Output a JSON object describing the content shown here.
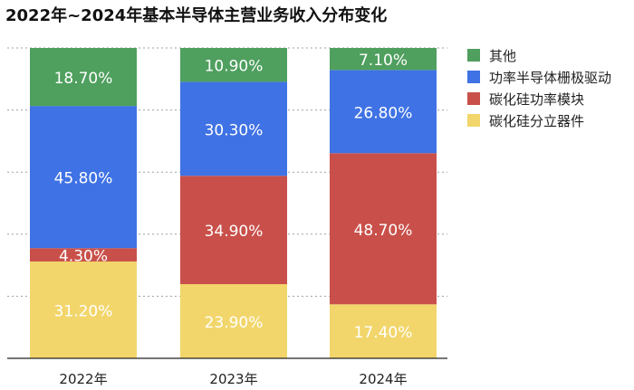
{
  "chart_data": {
    "type": "bar",
    "stacked": true,
    "title": "2022年~2024年基本半导体主营业务收入分布变化",
    "categories": [
      "2022年",
      "2023年",
      "2024年"
    ],
    "ylim": [
      0,
      100
    ],
    "grid": true,
    "legend_position": "right",
    "series": [
      {
        "name": "碳化硅分立器件",
        "color": "#F2D66B",
        "values": [
          31.2,
          23.9,
          17.4
        ],
        "labels": [
          "31.20%",
          "23.90%",
          "17.40%"
        ]
      },
      {
        "name": "碳化硅功率模块",
        "color": "#C9504A",
        "values": [
          4.3,
          34.9,
          48.7
        ],
        "labels": [
          "4.30%",
          "34.90%",
          "48.70%"
        ]
      },
      {
        "name": "功率半导体栅极驱动",
        "color": "#3F72E4",
        "values": [
          45.8,
          30.3,
          26.8
        ],
        "labels": [
          "45.80%",
          "30.30%",
          "26.80%"
        ]
      },
      {
        "name": "其他",
        "color": "#4F9F5E",
        "values": [
          18.7,
          10.9,
          7.1
        ],
        "labels": [
          "18.70%",
          "10.90%",
          "7.10%"
        ]
      }
    ],
    "legend_order": [
      "其他",
      "功率半导体栅极驱动",
      "碳化硅功率模块",
      "碳化硅分立器件"
    ]
  }
}
